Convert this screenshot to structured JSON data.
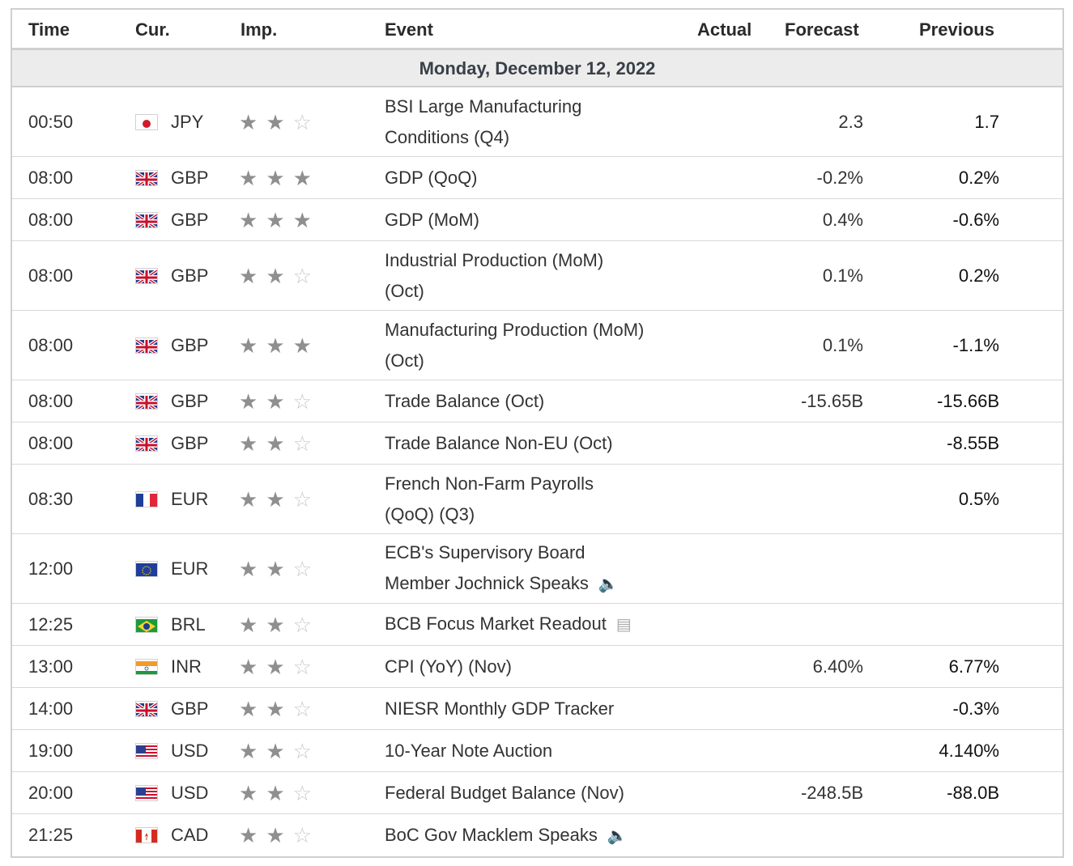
{
  "header": {
    "time": "Time",
    "cur": "Cur.",
    "imp": "Imp.",
    "event": "Event",
    "actual": "Actual",
    "forecast": "Forecast",
    "previous": "Previous"
  },
  "day_label": "Monday, December 12, 2022",
  "rows": [
    {
      "time": "00:50",
      "cur": "JPY",
      "flag": "jp-flag-icon",
      "stars": 2,
      "event_line1": "BSI Large Manufacturing",
      "event_line2": "Conditions (Q4)",
      "actual": "",
      "forecast": "2.3",
      "previous": "1.7"
    },
    {
      "time": "08:00",
      "cur": "GBP",
      "flag": "uk-flag-icon",
      "stars": 3,
      "event_line1": "GDP (QoQ)",
      "event_line2": "",
      "actual": "",
      "forecast": "-0.2%",
      "previous": "0.2%"
    },
    {
      "time": "08:00",
      "cur": "GBP",
      "flag": "uk-flag-icon",
      "stars": 3,
      "event_line1": "GDP (MoM)",
      "event_line2": "",
      "actual": "",
      "forecast": "0.4%",
      "previous": "-0.6%"
    },
    {
      "time": "08:00",
      "cur": "GBP",
      "flag": "uk-flag-icon",
      "stars": 2,
      "event_line1": "Industrial Production (MoM)",
      "event_line2": "(Oct)",
      "actual": "",
      "forecast": "0.1%",
      "previous": "0.2%"
    },
    {
      "time": "08:00",
      "cur": "GBP",
      "flag": "uk-flag-icon",
      "stars": 3,
      "event_line1": "Manufacturing Production (MoM)",
      "event_line2": "(Oct)",
      "actual": "",
      "forecast": "0.1%",
      "previous": "-1.1%"
    },
    {
      "time": "08:00",
      "cur": "GBP",
      "flag": "uk-flag-icon",
      "stars": 2,
      "event_line1": "Trade Balance (Oct)",
      "event_line2": "",
      "actual": "",
      "forecast": "-15.65B",
      "previous": "-15.66B"
    },
    {
      "time": "08:00",
      "cur": "GBP",
      "flag": "uk-flag-icon",
      "stars": 2,
      "event_line1": "Trade Balance Non-EU (Oct)",
      "event_line2": "",
      "actual": "",
      "forecast": "",
      "previous": "-8.55B"
    },
    {
      "time": "08:30",
      "cur": "EUR",
      "flag": "fr-flag-icon",
      "stars": 2,
      "event_line1": "French Non-Farm Payrolls",
      "event_line2": "(QoQ) (Q3)",
      "actual": "",
      "forecast": "",
      "previous": "0.5%"
    },
    {
      "time": "12:00",
      "cur": "EUR",
      "flag": "eu-flag-icon",
      "stars": 2,
      "event_line1": "ECB's Supervisory Board",
      "event_line2": "Member Jochnick Speaks",
      "event_icon": "speaker-icon",
      "actual": "",
      "forecast": "",
      "previous": ""
    },
    {
      "time": "12:25",
      "cur": "BRL",
      "flag": "br-flag-icon",
      "stars": 2,
      "event_line1": "BCB Focus Market Readout",
      "event_line2": "",
      "event_icon": "document-icon",
      "actual": "",
      "forecast": "",
      "previous": ""
    },
    {
      "time": "13:00",
      "cur": "INR",
      "flag": "in-flag-icon",
      "stars": 2,
      "event_line1": "CPI (YoY) (Nov)",
      "event_line2": "",
      "actual": "",
      "forecast": "6.40%",
      "previous": "6.77%"
    },
    {
      "time": "14:00",
      "cur": "GBP",
      "flag": "uk-flag-icon",
      "stars": 2,
      "event_line1": "NIESR Monthly GDP Tracker",
      "event_line2": "",
      "actual": "",
      "forecast": "",
      "previous": "-0.3%"
    },
    {
      "time": "19:00",
      "cur": "USD",
      "flag": "us-flag-icon",
      "stars": 2,
      "event_line1": "10-Year Note Auction",
      "event_line2": "",
      "actual": "",
      "forecast": "",
      "previous": "4.140%"
    },
    {
      "time": "20:00",
      "cur": "USD",
      "flag": "us-flag-icon",
      "stars": 2,
      "event_line1": "Federal Budget Balance (Nov)",
      "event_line2": "",
      "actual": "",
      "forecast": "-248.5B",
      "previous": "-88.0B"
    },
    {
      "time": "21:25",
      "cur": "CAD",
      "flag": "ca-flag-icon",
      "stars": 2,
      "event_line1": "BoC Gov Macklem Speaks",
      "event_line2": "",
      "event_icon": "speaker-icon",
      "actual": "",
      "forecast": "",
      "previous": ""
    }
  ]
}
